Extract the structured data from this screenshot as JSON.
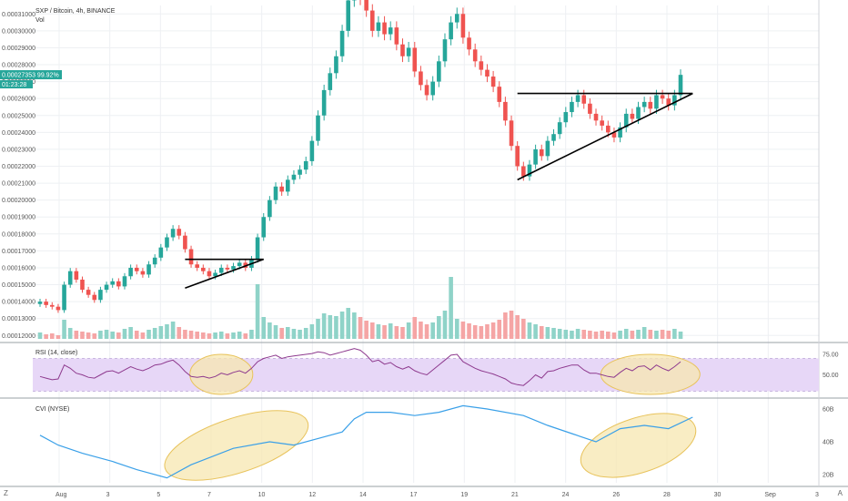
{
  "header": {
    "title": "SXP / Bitcoin, 4h, BINANCE",
    "vol_label": "Vol",
    "rsi_label": "RSI (14, close)",
    "cvi_label": "CVI (NYSE)"
  },
  "price_tags": {
    "last_price": "0.00027353",
    "change_pct": "99.92%",
    "countdown": "01:23:28"
  },
  "footer": {
    "left_corner": "Z",
    "right_corner": "A"
  },
  "colors": {
    "up": "#26a69a",
    "down": "#ef5350",
    "vol_up": "#8fd3c8",
    "vol_down": "#f5a5a5",
    "rsi_line": "#8e3a8e",
    "rsi_band": "#e7d7f7",
    "cvi_line": "#3aa0e8",
    "highlight_fill": "#f7e7b0",
    "highlight_stroke": "#e8c35c",
    "price_tag": "#26a69a"
  },
  "chart_data": [
    {
      "type": "candlestick",
      "pane": "price",
      "title": "SXP / Bitcoin, 4h, BINANCE",
      "y_ticks": [
        "0.00031000",
        "0.00030000",
        "0.00029000",
        "0.00028000",
        "0.00027000",
        "0.00026000",
        "0.00025000",
        "0.00024000",
        "0.00023000",
        "0.00022000",
        "0.00021000",
        "0.00020000",
        "0.00019000",
        "0.00018000",
        "0.00017000",
        "0.00016000",
        "0.00015000",
        "0.00014000",
        "0.00013000",
        "0.00012000"
      ],
      "ylim": [
        0.000118,
        0.000315
      ],
      "x_ticks": [
        "Aug",
        "3",
        "5",
        "7",
        "10",
        "12",
        "14",
        "17",
        "19",
        "21",
        "24",
        "26",
        "28",
        "30",
        "Sep",
        "3"
      ],
      "closes": [
        0.00014,
        0.000138,
        0.000137,
        0.000135,
        0.00015,
        0.000158,
        0.000153,
        0.000147,
        0.000144,
        0.000141,
        0.000147,
        0.00015,
        0.000152,
        0.000149,
        0.000155,
        0.00016,
        0.000158,
        0.000156,
        0.000162,
        0.000166,
        0.000172,
        0.000178,
        0.000183,
        0.000179,
        0.000171,
        0.000162,
        0.00016,
        0.000158,
        0.000155,
        0.000157,
        0.00016,
        0.000159,
        0.000161,
        0.000163,
        0.00016,
        0.000165,
        0.000178,
        0.00019,
        0.0002,
        0.000208,
        0.000205,
        0.000212,
        0.000215,
        0.000218,
        0.000223,
        0.000235,
        0.00025,
        0.000265,
        0.000275,
        0.000285,
        0.0003,
        0.000318,
        0.000322,
        0.000319,
        0.000312,
        0.0003,
        0.000305,
        0.000298,
        0.000302,
        0.000292,
        0.000285,
        0.00029,
        0.000276,
        0.000268,
        0.000262,
        0.00027,
        0.000282,
        0.000295,
        0.000305,
        0.00031,
        0.000296,
        0.000289,
        0.000282,
        0.000277,
        0.000273,
        0.000267,
        0.000258,
        0.000247,
        0.000232,
        0.00022,
        0.000214,
        0.000221,
        0.00023,
        0.000226,
        0.000235,
        0.000239,
        0.000246,
        0.000252,
        0.000258,
        0.000262,
        0.000257,
        0.000251,
        0.000247,
        0.000244,
        0.00024,
        0.000237,
        0.000243,
        0.000251,
        0.000248,
        0.000255,
        0.000258,
        0.000254,
        0.000262,
        0.00026,
        0.000256,
        0.000262,
        0.000274
      ],
      "volumes": [
        0.7,
        0.5,
        0.6,
        0.4,
        2.1,
        1.2,
        0.9,
        0.8,
        0.7,
        0.6,
        0.9,
        1.0,
        0.8,
        0.7,
        1.1,
        1.3,
        0.9,
        0.7,
        1.0,
        1.2,
        1.4,
        1.6,
        1.9,
        1.3,
        1.0,
        0.9,
        0.8,
        0.7,
        0.6,
        0.7,
        0.8,
        0.6,
        0.7,
        0.8,
        0.6,
        1.0,
        6.0,
        2.4,
        1.8,
        1.5,
        1.2,
        1.3,
        1.1,
        1.0,
        1.2,
        1.6,
        2.2,
        2.8,
        2.6,
        2.5,
        3.0,
        3.4,
        2.9,
        2.4,
        2.0,
        1.8,
        1.6,
        1.5,
        1.7,
        1.4,
        1.3,
        1.8,
        2.4,
        1.9,
        1.6,
        1.8,
        2.5,
        3.1,
        6.8,
        2.2,
        1.9,
        1.7,
        1.5,
        1.4,
        1.6,
        1.8,
        2.1,
        2.9,
        3.1,
        2.6,
        2.2,
        1.8,
        1.6,
        1.4,
        1.3,
        1.2,
        1.1,
        1.0,
        0.9,
        1.1,
        1.0,
        0.9,
        0.8,
        0.9,
        0.8,
        0.7,
        0.9,
        1.1,
        0.9,
        1.0,
        1.3,
        1.0,
        0.9,
        1.0,
        0.9,
        1.1,
        0.8
      ],
      "annotations": [
        {
          "kind": "triangle",
          "top": [
            0.000165,
            0.000165
          ],
          "bottom": [
            0.000148,
            0.000165
          ],
          "from_index": 24,
          "to_index": 37
        },
        {
          "kind": "triangle",
          "top": [
            0.000263,
            0.000263
          ],
          "bottom": [
            0.000212,
            0.000263
          ],
          "from_index": 79,
          "to_index": 108
        }
      ]
    },
    {
      "type": "line",
      "pane": "rsi",
      "title": "RSI (14, close)",
      "y_ticks": [
        "75.00",
        "50.00"
      ],
      "band": [
        30,
        70
      ],
      "ylim": [
        25,
        85
      ],
      "values": [
        48,
        46,
        44,
        45,
        62,
        58,
        52,
        50,
        47,
        46,
        50,
        54,
        55,
        52,
        56,
        60,
        57,
        55,
        58,
        62,
        63,
        66,
        68,
        62,
        54,
        48,
        47,
        48,
        46,
        48,
        52,
        50,
        53,
        55,
        52,
        58,
        66,
        70,
        72,
        74,
        70,
        72,
        73,
        74,
        75,
        76,
        78,
        77,
        74,
        76,
        78,
        80,
        82,
        80,
        74,
        66,
        68,
        63,
        65,
        60,
        57,
        60,
        55,
        52,
        50,
        56,
        62,
        68,
        74,
        75,
        66,
        62,
        58,
        55,
        53,
        51,
        48,
        45,
        40,
        38,
        37,
        43,
        50,
        46,
        54,
        55,
        58,
        60,
        62,
        62,
        56,
        52,
        52,
        50,
        48,
        47,
        53,
        58,
        55,
        60,
        61,
        56,
        62,
        58,
        55,
        60,
        66
      ],
      "highlights": [
        {
          "from_index": 26,
          "to_index": 34
        },
        {
          "from_index": 94,
          "to_index": 108
        }
      ]
    },
    {
      "type": "line",
      "pane": "cvi",
      "title": "CVI (NYSE)",
      "y_ticks": [
        "60B",
        "40B",
        "20B"
      ],
      "ylim": [
        15,
        65
      ],
      "x": [
        0,
        3,
        7,
        12,
        16,
        21,
        25,
        32,
        38,
        42,
        46,
        50,
        52,
        54,
        58,
        62,
        66,
        70,
        74,
        80,
        84,
        88,
        92,
        96,
        100,
        104,
        108
      ],
      "values": [
        44,
        38,
        33,
        28,
        23,
        18,
        26,
        36,
        40,
        38,
        42,
        46,
        54,
        58,
        58,
        56,
        58,
        62,
        60,
        56,
        50,
        45,
        40,
        48,
        50,
        48,
        55
      ],
      "highlights": [
        {
          "from_index": 21,
          "to_index": 44
        },
        {
          "from_index": 90,
          "to_index": 108
        }
      ]
    }
  ]
}
